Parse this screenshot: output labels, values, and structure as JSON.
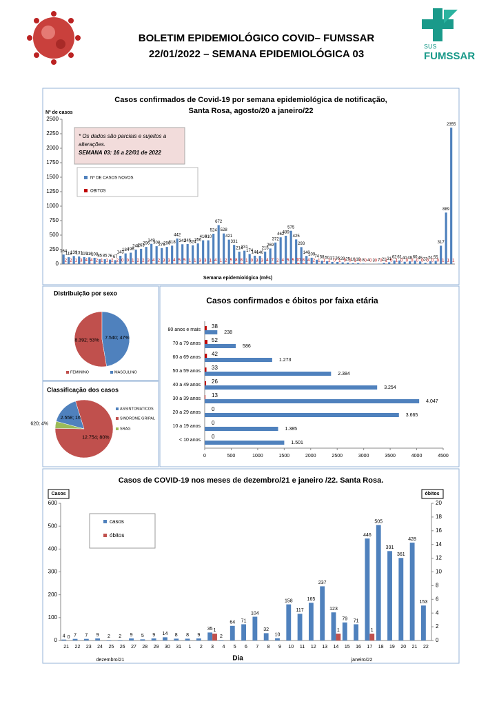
{
  "header": {
    "title": [
      "BOLETIM EPIDEMIOLÓGICO COVID– FUMSSAR",
      "22/01/2022 – SEMANA EPIDEMIOLÓGICA 03"
    ],
    "logo_sus": "SUS",
    "logo_text": "FUMSSAR"
  },
  "chart_data": [
    {
      "type": "bar",
      "title": [
        "Casos confirmados de Covid-19 por semana epidemiológica de notificação,",
        "Santa Rosa, agosto/20 a janeiro/22"
      ],
      "y_label": "Nº de casos",
      "x_label": "Semana epidemiológica (mês)",
      "notes": [
        "* Os dados são parciais e sujeitos a",
        "alterações.",
        "SEMANA 03: 16 a 22/01 de 2022"
      ],
      "ylim": [
        0,
        2500
      ],
      "yticks": [
        0,
        250,
        500,
        750,
        1000,
        1250,
        1500,
        1750,
        2000,
        2250,
        2500
      ],
      "series": [
        {
          "name": "Nº DE CASOS NOVOS",
          "color": "#4f81bd",
          "values": [
            164,
            118,
            139,
            131,
            119,
            116,
            108,
            85,
            85,
            76,
            67,
            143,
            184,
            196,
            248,
            263,
            296,
            349,
            308,
            276,
            296,
            318,
            442,
            342,
            345,
            324,
            356,
            410,
            410,
            524,
            672,
            528,
            421,
            331,
            214,
            231,
            174,
            144,
            140,
            215,
            269,
            372,
            462,
            489,
            575,
            425,
            293,
            140,
            109,
            74,
            58,
            50,
            37,
            36,
            29,
            25,
            16,
            18,
            8,
            4,
            3,
            7,
            21,
            31,
            62,
            61,
            40,
            48,
            60,
            45,
            23,
            51,
            55,
            317,
            889,
            2355
          ]
        },
        {
          "name": "OBITOS",
          "color": "#c00000",
          "values": [
            2,
            2,
            1,
            3,
            4,
            4,
            2,
            1,
            1,
            2,
            2,
            0,
            0,
            1,
            2,
            2,
            3,
            4,
            2,
            3,
            3,
            4,
            5,
            5,
            1,
            1,
            3,
            3,
            1,
            4,
            1,
            2,
            5,
            8,
            8,
            1,
            0,
            3,
            3,
            4,
            7,
            2,
            4,
            5,
            5,
            10,
            8,
            4,
            2,
            1,
            1,
            2,
            0,
            1,
            0,
            0,
            1,
            0,
            0,
            0,
            0,
            0,
            1,
            0,
            1,
            0,
            0,
            0,
            0,
            0,
            0,
            0,
            0,
            1,
            1,
            1
          ]
        }
      ]
    },
    {
      "type": "pie",
      "title": "Distribuição por sexo",
      "categories": [
        "FEMININO",
        "MASCULINO"
      ],
      "values": [
        8392,
        7540
      ],
      "value_labels": [
        "8.392; 53%",
        "7.540; 47%"
      ],
      "colors": [
        "#c0504d",
        "#4f81bd"
      ]
    },
    {
      "type": "pie",
      "title": "Classificação dos casos",
      "categories": [
        "ASSINTOMATICOS",
        "SINDROME GRIPAL",
        "SRAG"
      ],
      "values": [
        2558,
        12754,
        620
      ],
      "value_labels": [
        "2.558; 16%",
        "12.754; 80%",
        "620; 4%"
      ],
      "colors": [
        "#4f81bd",
        "#c0504d",
        "#9bbb59"
      ]
    },
    {
      "type": "hbar",
      "title": "Casos confirmados e óbitos  por faixa etária",
      "categories": [
        "80 anos e mais",
        "70 a 79 anos",
        "60 a 69 anos",
        "50 a 59 anos",
        "40 a 49 anos",
        "30 a 39 anos",
        "20 a 29 anos",
        "10 a 19 anos",
        "< 10 anos"
      ],
      "xlim": [
        0,
        4500
      ],
      "xticks": [
        0,
        500,
        1000,
        1500,
        2000,
        2500,
        3000,
        3500,
        4000,
        4500
      ],
      "series": [
        {
          "color": "#4f81bd",
          "values": [
            238,
            586,
            1273,
            2384,
            3254,
            4047,
            3665,
            1385,
            1501
          ],
          "value_labels": [
            "238",
            "586",
            "1.273",
            "2.384",
            "3.254",
            "4.047",
            "3.665",
            "1.385",
            "1.501"
          ]
        },
        {
          "color": "#c00000",
          "values": [
            38,
            52,
            42,
            33,
            26,
            13,
            0,
            0,
            0
          ]
        }
      ]
    },
    {
      "type": "bar",
      "title": [
        "Casos de COVID-19 nos meses de dezembro/21 e janeiro /22. Santa Rosa."
      ],
      "y_label": "Casos",
      "y2_label": "óbitos",
      "x_label": "Dia",
      "annotations": [
        "dezembro/21",
        "janeiro/22"
      ],
      "categories": [
        "21",
        "22",
        "23",
        "24",
        "25",
        "26",
        "27",
        "28",
        "29",
        "30",
        "31",
        "1",
        "2",
        "3",
        "4",
        "5",
        "6",
        "7",
        "8",
        "9",
        "10",
        "11",
        "12",
        "13",
        "14",
        "15",
        "16",
        "17",
        "18",
        "19",
        "20",
        "21",
        "22"
      ],
      "ylim": [
        0,
        600
      ],
      "yticks": [
        0,
        100,
        200,
        300,
        400,
        500,
        600
      ],
      "y2lim": [
        0,
        20
      ],
      "y2ticks": [
        0,
        2,
        4,
        6,
        8,
        10,
        12,
        14,
        16,
        18,
        20
      ],
      "series": [
        {
          "name": "casos",
          "color": "#4f81bd",
          "values": [
            4,
            7,
            7,
            9,
            2,
            2,
            9,
            5,
            9,
            14,
            8,
            8,
            9,
            35,
            2,
            64,
            71,
            104,
            32,
            10,
            158,
            117,
            165,
            237,
            123,
            79,
            71,
            446,
            505,
            391,
            361,
            428,
            153
          ]
        },
        {
          "name": "óbitos",
          "color": "#c0504d",
          "axis": "y2",
          "values": [
            0,
            null,
            null,
            null,
            null,
            null,
            null,
            null,
            null,
            null,
            null,
            null,
            null,
            1,
            null,
            null,
            null,
            null,
            null,
            null,
            null,
            null,
            null,
            null,
            1,
            null,
            null,
            1,
            null,
            null,
            null,
            null,
            null
          ]
        }
      ]
    }
  ]
}
